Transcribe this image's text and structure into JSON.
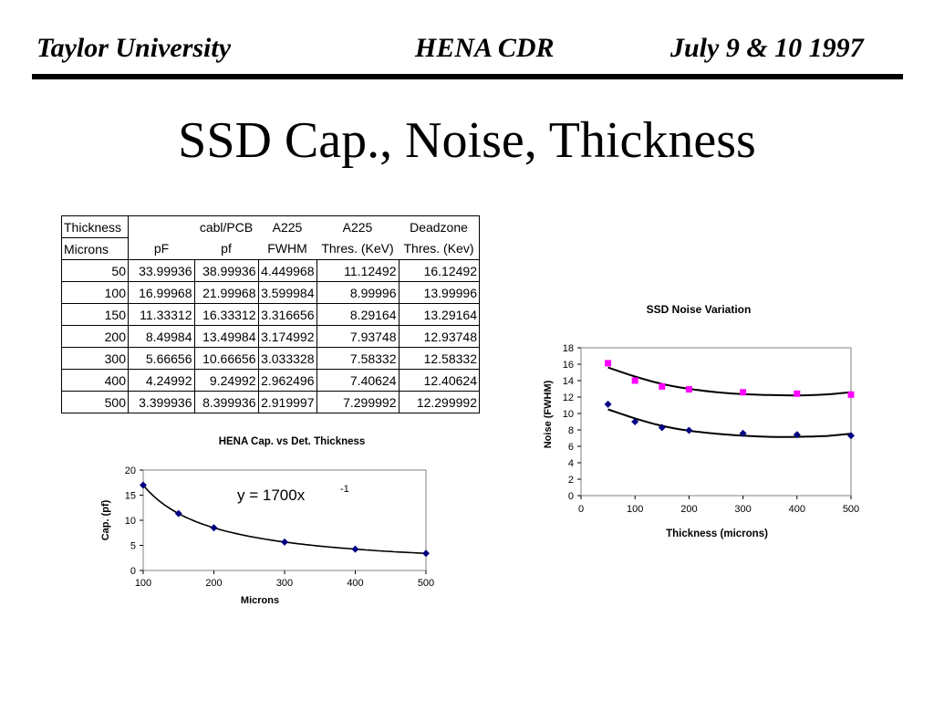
{
  "header": {
    "left": "Taylor University",
    "center": "HENA CDR",
    "right": "July 9 & 10 1997"
  },
  "slide_title": "SSD Cap., Noise, Thickness",
  "table": {
    "header_row1": [
      "Thickness",
      "",
      "cabl/PCB",
      "A225",
      "A225",
      "Deadzone"
    ],
    "header_row2": [
      "Microns",
      "pF",
      "pf",
      "FWHM",
      "Thres. (KeV)",
      "Thres. (Kev)"
    ],
    "rows": [
      [
        "50",
        "33.99936",
        "38.99936",
        "4.449968",
        "11.12492",
        "16.12492"
      ],
      [
        "100",
        "16.99968",
        "21.99968",
        "3.599984",
        "8.99996",
        "13.99996"
      ],
      [
        "150",
        "11.33312",
        "16.33312",
        "3.316656",
        "8.29164",
        "13.29164"
      ],
      [
        "200",
        "8.49984",
        "13.49984",
        "3.174992",
        "7.93748",
        "12.93748"
      ],
      [
        "300",
        "5.66656",
        "10.66656",
        "3.033328",
        "7.58332",
        "12.58332"
      ],
      [
        "400",
        "4.24992",
        "9.24992",
        "2.962496",
        "7.40624",
        "12.40624"
      ],
      [
        "500",
        "3.399936",
        "8.399936",
        "2.919997",
        "7.299992",
        "12.299992"
      ]
    ]
  },
  "chart_data": [
    {
      "type": "scatter",
      "title": "HENA Cap. vs Det. Thickness",
      "xlabel": "Microns",
      "ylabel": "Cap. (pf)",
      "xlim": [
        100,
        500
      ],
      "ylim": [
        0,
        20
      ],
      "xticks": [
        "100",
        "200",
        "300",
        "400",
        "500"
      ],
      "yticks": [
        "0",
        "5",
        "10",
        "15",
        "20"
      ],
      "trendline_label": "y = 1700x",
      "trendline_exponent": "-1",
      "trendline": {
        "type": "power",
        "a": 1700,
        "b": -1
      },
      "series": [
        {
          "x": [
            100,
            150,
            200,
            300,
            400,
            500
          ],
          "y": [
            17.0,
            11.33,
            8.5,
            5.67,
            4.25,
            3.4
          ],
          "color": "#000080"
        }
      ],
      "grid": false
    },
    {
      "type": "scatter",
      "title": "SSD Noise Variation",
      "xlabel": "Thickness (microns)",
      "ylabel": "Noise (FWHM)",
      "xlim": [
        0,
        500
      ],
      "ylim": [
        0,
        18
      ],
      "xticks": [
        "0",
        "100",
        "200",
        "300",
        "400",
        "500"
      ],
      "yticks": [
        "0",
        "2",
        "4",
        "6",
        "8",
        "10",
        "12",
        "14",
        "16",
        "18"
      ],
      "series": [
        {
          "marker": "square",
          "color": "#FF00FF",
          "x": [
            50,
            100,
            150,
            200,
            300,
            400,
            500
          ],
          "y": [
            16.12,
            14.0,
            13.29,
            12.94,
            12.58,
            12.41,
            12.3
          ]
        },
        {
          "marker": "diamond",
          "color": "#000080",
          "x": [
            50,
            100,
            150,
            200,
            300,
            400,
            500
          ],
          "y": [
            11.12,
            9.0,
            8.29,
            7.94,
            7.58,
            7.41,
            7.3
          ]
        }
      ],
      "trendlines": [
        {
          "x": [
            50,
            100,
            150,
            200,
            250,
            300,
            350,
            400,
            450,
            500
          ],
          "y": [
            15.6,
            14.5,
            13.6,
            13.0,
            12.6,
            12.35,
            12.25,
            12.2,
            12.3,
            12.6
          ]
        },
        {
          "x": [
            50,
            100,
            150,
            200,
            250,
            300,
            350,
            400,
            450,
            500
          ],
          "y": [
            10.5,
            9.4,
            8.5,
            7.9,
            7.55,
            7.3,
            7.15,
            7.15,
            7.25,
            7.55
          ]
        }
      ],
      "grid": false
    }
  ]
}
